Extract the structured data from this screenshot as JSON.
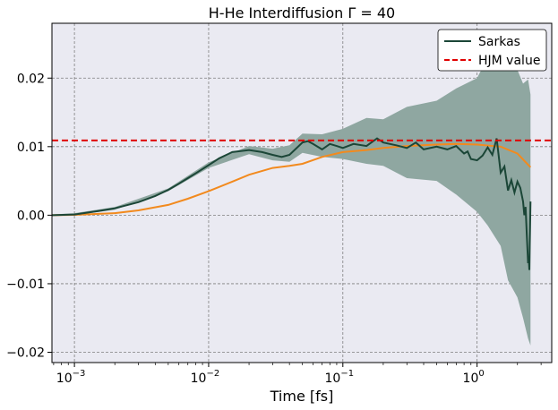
{
  "chart_data": {
    "type": "line",
    "title": "H-He Interdiffusion Γ = 40",
    "xlabel": "Time [fs]",
    "ylabel": "",
    "xscale": "log",
    "xlim": [
      0.00068,
      3.6
    ],
    "ylim": [
      -0.0215,
      0.028
    ],
    "grid": true,
    "legend_position": "top-right",
    "x_ticks": [
      {
        "value": 0.001,
        "base": "10",
        "exp": "−3"
      },
      {
        "value": 0.01,
        "base": "10",
        "exp": "−2"
      },
      {
        "value": 0.1,
        "base": "10",
        "exp": "−1"
      },
      {
        "value": 1,
        "base": "10",
        "exp": "0"
      }
    ],
    "y_ticks": [
      {
        "value": 0.02,
        "label": "0.02"
      },
      {
        "value": 0.01,
        "label": "0.01"
      },
      {
        "value": 0.0,
        "label": "0.00"
      },
      {
        "value": -0.01,
        "label": "−0.01"
      },
      {
        "value": -0.02,
        "label": "−0.02"
      }
    ],
    "series": [
      {
        "name": "Sarkas",
        "color": "#1b4637",
        "style": "solid",
        "x": [
          0.00068,
          0.001,
          0.0015,
          0.002,
          0.003,
          0.004,
          0.005,
          0.006,
          0.007,
          0.008,
          0.01,
          0.012,
          0.015,
          0.02,
          0.025,
          0.03,
          0.035,
          0.04,
          0.05,
          0.055,
          0.06,
          0.07,
          0.08,
          0.09,
          0.1,
          0.12,
          0.15,
          0.18,
          0.2,
          0.25,
          0.3,
          0.35,
          0.4,
          0.5,
          0.6,
          0.7,
          0.8,
          0.85,
          0.9,
          1.0,
          1.1,
          1.2,
          1.3,
          1.4,
          1.5,
          1.6,
          1.7,
          1.8,
          1.9,
          2.0,
          2.1,
          2.2,
          2.25,
          2.3,
          2.35,
          2.4,
          2.42,
          2.45,
          2.5
        ],
        "y": [
          0.0,
          0.0001,
          0.0006,
          0.001,
          0.0019,
          0.0028,
          0.0037,
          0.0046,
          0.0054,
          0.0061,
          0.0073,
          0.0083,
          0.0092,
          0.0095,
          0.0092,
          0.0088,
          0.0085,
          0.0088,
          0.0106,
          0.0108,
          0.0104,
          0.0096,
          0.0104,
          0.0101,
          0.0098,
          0.0104,
          0.0101,
          0.0112,
          0.0106,
          0.0102,
          0.0098,
          0.0106,
          0.0096,
          0.01,
          0.0096,
          0.0101,
          0.009,
          0.0093,
          0.0082,
          0.008,
          0.0087,
          0.0099,
          0.0088,
          0.0112,
          0.0062,
          0.0071,
          0.0036,
          0.0051,
          0.0033,
          0.0049,
          0.004,
          0.002,
          0.0,
          0.0012,
          -0.003,
          -0.007,
          -0.006,
          -0.008,
          0.002
        ]
      },
      {
        "name": "HJM value",
        "color": "#e00000",
        "style": "dashed",
        "constant": 0.0109
      },
      {
        "name": "",
        "color": "#f28a1e",
        "style": "solid",
        "x": [
          0.00068,
          0.001,
          0.002,
          0.003,
          0.005,
          0.007,
          0.01,
          0.015,
          0.02,
          0.03,
          0.04,
          0.05,
          0.07,
          0.1,
          0.15,
          0.2,
          0.3,
          0.5,
          0.7,
          1.0,
          1.5,
          2.0,
          2.5
        ],
        "y": [
          0.0,
          5e-05,
          0.0003,
          0.0007,
          0.0015,
          0.0024,
          0.0035,
          0.0049,
          0.0059,
          0.0069,
          0.0072,
          0.0075,
          0.0085,
          0.0092,
          0.0095,
          0.0098,
          0.0101,
          0.0103,
          0.0104,
          0.0103,
          0.01,
          0.009,
          0.007
        ]
      }
    ],
    "band": {
      "color": "#8fa7a1",
      "x": [
        0.00068,
        0.001,
        0.002,
        0.005,
        0.01,
        0.02,
        0.03,
        0.04,
        0.05,
        0.07,
        0.1,
        0.15,
        0.2,
        0.3,
        0.5,
        0.7,
        1.0,
        1.2,
        1.5,
        1.7,
        2.0,
        2.2,
        2.4,
        2.5
      ],
      "upper": [
        0.0001,
        0.0003,
        0.0012,
        0.0039,
        0.0077,
        0.0101,
        0.0097,
        0.0102,
        0.0119,
        0.0118,
        0.0126,
        0.0142,
        0.014,
        0.0158,
        0.0167,
        0.0185,
        0.02,
        0.023,
        0.0252,
        0.0232,
        0.0212,
        0.0192,
        0.0198,
        0.0176
      ],
      "lower": [
        -0.0001,
        0.0,
        0.0008,
        0.0035,
        0.0069,
        0.0089,
        0.008,
        0.0078,
        0.0091,
        0.0085,
        0.0082,
        0.0075,
        0.0072,
        0.0054,
        0.005,
        0.003,
        0.0005,
        -0.0015,
        -0.0045,
        -0.0095,
        -0.012,
        -0.015,
        -0.018,
        -0.019
      ]
    }
  }
}
